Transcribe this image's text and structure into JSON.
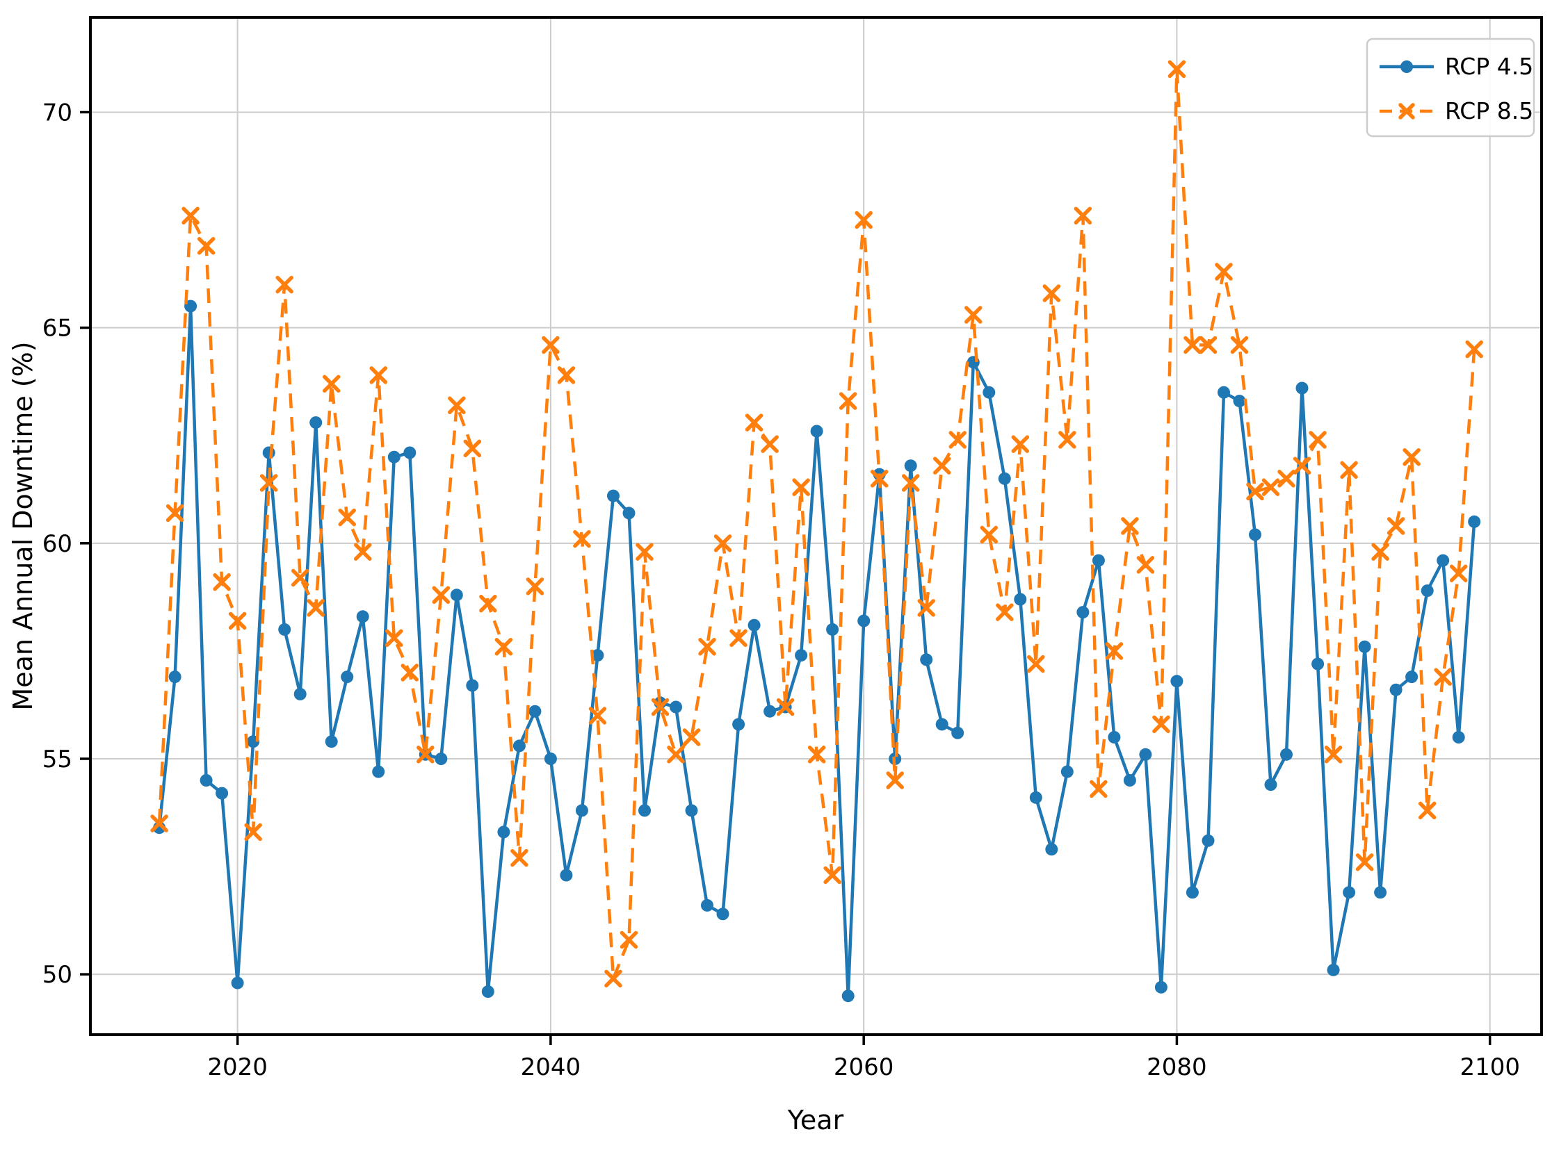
{
  "figure": {
    "background": "#ffffff",
    "plot_bg": "#ffffff",
    "grid_color": "#cccccc",
    "spine_color": "#000000"
  },
  "chart_data": {
    "type": "line",
    "title": "",
    "xlabel": "Year",
    "ylabel": "Mean Annual Downtime (%)",
    "grid": true,
    "legend_position": "upper right",
    "xlim": [
      2010.6,
      2103.3
    ],
    "ylim": [
      48.6,
      72.2
    ],
    "x_ticks": [
      2020,
      2040,
      2060,
      2080,
      2100
    ],
    "y_ticks": [
      50,
      55,
      60,
      65,
      70
    ],
    "x": [
      2015,
      2016,
      2017,
      2018,
      2019,
      2020,
      2021,
      2022,
      2023,
      2024,
      2025,
      2026,
      2027,
      2028,
      2029,
      2030,
      2031,
      2032,
      2033,
      2034,
      2035,
      2036,
      2037,
      2038,
      2039,
      2040,
      2041,
      2042,
      2043,
      2044,
      2045,
      2046,
      2047,
      2048,
      2049,
      2050,
      2051,
      2052,
      2053,
      2054,
      2055,
      2056,
      2057,
      2058,
      2059,
      2060,
      2061,
      2062,
      2063,
      2064,
      2065,
      2066,
      2067,
      2068,
      2069,
      2070,
      2071,
      2072,
      2073,
      2074,
      2075,
      2076,
      2077,
      2078,
      2079,
      2080,
      2081,
      2082,
      2083,
      2084,
      2085,
      2086,
      2087,
      2088,
      2089,
      2090,
      2091,
      2092,
      2093,
      2094,
      2095,
      2096,
      2097,
      2098,
      2099
    ],
    "series": [
      {
        "name": "RCP 4.5",
        "color": "#1f77b4",
        "line_style": "solid",
        "marker": "circle",
        "values": [
          53.4,
          56.9,
          65.5,
          54.5,
          54.2,
          49.8,
          55.4,
          62.1,
          58.0,
          56.5,
          62.8,
          55.4,
          56.9,
          58.3,
          54.7,
          62.0,
          62.1,
          55.1,
          55.0,
          58.8,
          56.7,
          49.6,
          53.3,
          55.3,
          56.1,
          55.0,
          52.3,
          53.8,
          57.4,
          61.1,
          60.7,
          53.8,
          56.3,
          56.2,
          53.8,
          51.6,
          51.4,
          55.8,
          58.1,
          56.1,
          56.2,
          57.4,
          62.6,
          58.0,
          49.5,
          58.2,
          61.6,
          55.0,
          61.8,
          57.3,
          55.8,
          55.6,
          64.2,
          63.5,
          61.5,
          58.7,
          54.1,
          52.9,
          54.7,
          58.4,
          59.6,
          55.5,
          54.5,
          55.1,
          49.7,
          56.8,
          51.9,
          53.1,
          63.5,
          63.3,
          60.2,
          54.4,
          55.1,
          63.6,
          57.2,
          50.1,
          51.9,
          57.6,
          51.9,
          56.6,
          56.9,
          58.9,
          59.6,
          55.5,
          60.5
        ]
      },
      {
        "name": "RCP 8.5",
        "color": "#ff7f0e",
        "line_style": "dashed",
        "marker": "x",
        "values": [
          53.5,
          60.7,
          67.6,
          66.9,
          59.1,
          58.2,
          53.3,
          61.4,
          66.0,
          59.2,
          58.5,
          63.7,
          60.6,
          59.8,
          63.9,
          57.8,
          57.0,
          55.1,
          58.8,
          63.2,
          62.2,
          58.6,
          57.6,
          52.7,
          59.0,
          64.6,
          63.9,
          60.1,
          56.0,
          49.9,
          50.8,
          59.8,
          56.2,
          55.1,
          55.5,
          57.6,
          60.0,
          57.8,
          62.8,
          62.3,
          56.2,
          61.3,
          55.1,
          52.3,
          63.3,
          67.5,
          61.5,
          54.5,
          61.4,
          58.5,
          61.8,
          62.4,
          65.3,
          60.2,
          58.4,
          62.3,
          57.2,
          65.8,
          62.4,
          67.6,
          54.3,
          57.5,
          60.4,
          59.5,
          55.8,
          71.0,
          64.6,
          64.6,
          66.3,
          64.6,
          61.2,
          61.3,
          61.5,
          61.8,
          62.4,
          55.1,
          61.7,
          52.6,
          59.8,
          60.4,
          62.0,
          53.8,
          56.9,
          59.3,
          64.5
        ]
      }
    ]
  }
}
